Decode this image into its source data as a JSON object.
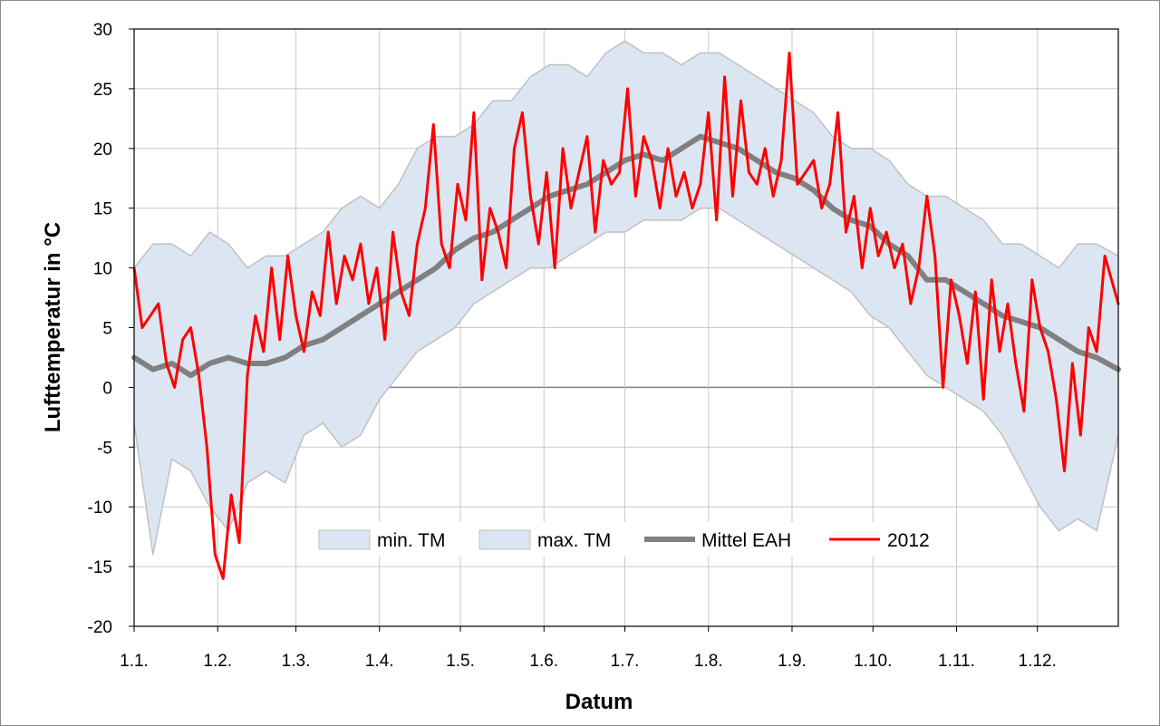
{
  "chart_data": {
    "type": "area",
    "xlabel": "Datum",
    "ylabel": "Lufttemperatur in °C",
    "ylim": [
      -20,
      30
    ],
    "yticks": [
      -20,
      -15,
      -10,
      -5,
      0,
      5,
      10,
      15,
      20,
      25,
      30
    ],
    "xlim": [
      1,
      366
    ],
    "xtick_labels": [
      "1.1.",
      "1.2.",
      "1.3.",
      "1.4.",
      "1.5.",
      "1.6.",
      "1.7.",
      "1.8.",
      "1.9.",
      "1.10.",
      "1.11.",
      "1.12."
    ],
    "xtick_days": [
      1,
      32,
      61,
      92,
      122,
      153,
      183,
      214,
      245,
      275,
      306,
      336
    ],
    "grid": true,
    "legend_position": "bottom-center",
    "colors": {
      "band": "#dce6f2",
      "band_edge": "#c0c0c0",
      "mean": "#808080",
      "year": "#ff0000"
    },
    "series": [
      {
        "name": "min. TM",
        "x": [
          1,
          8,
          15,
          22,
          29,
          36,
          43,
          50,
          57,
          64,
          71,
          78,
          85,
          92,
          99,
          106,
          113,
          120,
          127,
          134,
          141,
          148,
          155,
          162,
          169,
          176,
          183,
          190,
          197,
          204,
          211,
          218,
          225,
          232,
          239,
          246,
          253,
          260,
          267,
          274,
          281,
          288,
          295,
          302,
          309,
          316,
          323,
          330,
          337,
          344,
          351,
          358,
          366
        ],
        "values": [
          -3,
          -14,
          -6,
          -7,
          -10,
          -12,
          -8,
          -7,
          -8,
          -4,
          -3,
          -5,
          -4,
          -1,
          1,
          3,
          4,
          5,
          7,
          8,
          9,
          10,
          10,
          11,
          12,
          13,
          13,
          14,
          14,
          14,
          15,
          15,
          14,
          13,
          12,
          11,
          10,
          9,
          8,
          6,
          5,
          3,
          1,
          0,
          -1,
          -2,
          -4,
          -7,
          -10,
          -12,
          -11,
          -12,
          -4
        ]
      },
      {
        "name": "max. TM",
        "x": [
          1,
          8,
          15,
          22,
          29,
          36,
          43,
          50,
          57,
          64,
          71,
          78,
          85,
          92,
          99,
          106,
          113,
          120,
          127,
          134,
          141,
          148,
          155,
          162,
          169,
          176,
          183,
          190,
          197,
          204,
          211,
          218,
          225,
          232,
          239,
          246,
          253,
          260,
          267,
          274,
          281,
          288,
          295,
          302,
          309,
          316,
          323,
          330,
          337,
          344,
          351,
          358,
          366
        ],
        "values": [
          10,
          12,
          12,
          11,
          13,
          12,
          10,
          11,
          11,
          12,
          13,
          15,
          16,
          15,
          17,
          20,
          21,
          21,
          22,
          24,
          24,
          26,
          27,
          27,
          26,
          28,
          29,
          28,
          28,
          27,
          28,
          28,
          27,
          26,
          25,
          24,
          23,
          21,
          20,
          20,
          19,
          17,
          16,
          16,
          15,
          14,
          12,
          12,
          11,
          10,
          12,
          12,
          11
        ]
      },
      {
        "name": "Mittel EAH",
        "x": [
          1,
          8,
          15,
          22,
          29,
          36,
          43,
          50,
          57,
          64,
          71,
          78,
          85,
          92,
          99,
          106,
          113,
          120,
          127,
          134,
          141,
          148,
          155,
          162,
          169,
          176,
          183,
          190,
          197,
          204,
          211,
          218,
          225,
          232,
          239,
          246,
          253,
          260,
          267,
          274,
          281,
          288,
          295,
          302,
          309,
          316,
          323,
          330,
          337,
          344,
          351,
          358,
          366
        ],
        "values": [
          2.5,
          1.5,
          2,
          1,
          2,
          2.5,
          2,
          2,
          2.5,
          3.5,
          4,
          5,
          6,
          7,
          8,
          9,
          10,
          11.5,
          12.5,
          13,
          14,
          15,
          16,
          16.5,
          17,
          18,
          19,
          19.5,
          19,
          20,
          21,
          20.5,
          20,
          19,
          18,
          17.5,
          16.5,
          15,
          14,
          13.5,
          12,
          11,
          9,
          9,
          8,
          7,
          6,
          5.5,
          5,
          4,
          3,
          2.5,
          1.5
        ]
      },
      {
        "name": "2012",
        "x": [
          1,
          4,
          7,
          10,
          13,
          16,
          19,
          22,
          25,
          28,
          31,
          34,
          37,
          40,
          43,
          46,
          49,
          52,
          55,
          58,
          61,
          64,
          67,
          70,
          73,
          76,
          79,
          82,
          85,
          88,
          91,
          94,
          97,
          100,
          103,
          106,
          109,
          112,
          115,
          118,
          121,
          124,
          127,
          130,
          133,
          136,
          139,
          142,
          145,
          148,
          151,
          154,
          157,
          160,
          163,
          166,
          169,
          172,
          175,
          178,
          181,
          184,
          187,
          190,
          193,
          196,
          199,
          202,
          205,
          208,
          211,
          214,
          217,
          220,
          223,
          226,
          229,
          232,
          235,
          238,
          241,
          244,
          247,
          250,
          253,
          256,
          259,
          262,
          265,
          268,
          271,
          274,
          277,
          280,
          283,
          286,
          289,
          292,
          295,
          298,
          301,
          304,
          307,
          310,
          313,
          316,
          319,
          322,
          325,
          328,
          331,
          334,
          337,
          340,
          343,
          346,
          349,
          352,
          355,
          358,
          361,
          366
        ],
        "values": [
          10,
          5,
          6,
          7,
          2,
          0,
          4,
          5,
          1,
          -5,
          -14,
          -16,
          -9,
          -13,
          1,
          6,
          3,
          10,
          4,
          11,
          6,
          3,
          8,
          6,
          13,
          7,
          11,
          9,
          12,
          7,
          10,
          4,
          13,
          8,
          6,
          12,
          15,
          22,
          12,
          10,
          17,
          14,
          23,
          9,
          15,
          13,
          10,
          20,
          23,
          16,
          12,
          18,
          10,
          20,
          15,
          18,
          21,
          13,
          19,
          17,
          18,
          25,
          16,
          21,
          19,
          15,
          20,
          16,
          18,
          15,
          17,
          23,
          14,
          26,
          16,
          24,
          18,
          17,
          20,
          16,
          19,
          28,
          17,
          18,
          19,
          15,
          17,
          23,
          13,
          16,
          10,
          15,
          11,
          13,
          10,
          12,
          7,
          10,
          16,
          11,
          0,
          9,
          6,
          2,
          8,
          -1,
          9,
          3,
          7,
          2,
          -2,
          9,
          5,
          3,
          -1,
          -7,
          2,
          -4,
          5,
          3,
          11,
          7
        ]
      }
    ]
  }
}
